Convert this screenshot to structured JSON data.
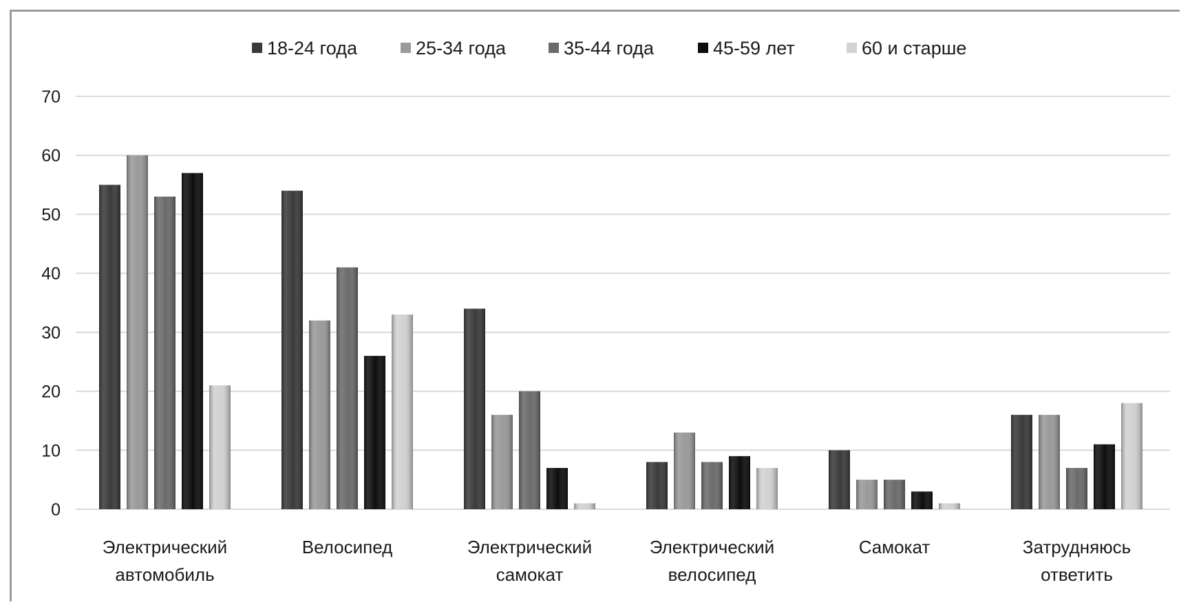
{
  "chart_data": {
    "type": "bar",
    "title": "",
    "xlabel": "",
    "ylabel": "",
    "ylim": [
      0,
      70
    ],
    "yticks": [
      "0",
      "10",
      "20",
      "30",
      "40",
      "50",
      "60",
      "70"
    ],
    "grid": true,
    "legend_position": "top-center",
    "categories": [
      [
        "Электрический",
        "автомобиль"
      ],
      [
        "Велосипед"
      ],
      [
        "Электрический",
        "самокат"
      ],
      [
        "Электрический",
        "велосипед"
      ],
      [
        "Самокат"
      ],
      [
        "Затрудняюсь",
        "ответить"
      ]
    ],
    "series": [
      {
        "name": "18-24 года",
        "color": "#3a3a3a",
        "values": [
          55,
          54,
          34,
          8,
          10,
          16
        ]
      },
      {
        "name": "25-34 года",
        "color": "#9a9a9a",
        "values": [
          60,
          32,
          16,
          13,
          5,
          16
        ]
      },
      {
        "name": "35-44 года",
        "color": "#6b6b6b",
        "values": [
          53,
          41,
          20,
          8,
          5,
          7
        ]
      },
      {
        "name": "45-59 лет",
        "color": "#0d0d0d",
        "values": [
          57,
          26,
          7,
          9,
          3,
          11
        ]
      },
      {
        "name": "60 и старше",
        "color": "#d2d2d2",
        "values": [
          21,
          33,
          1,
          7,
          1,
          18
        ]
      }
    ]
  }
}
